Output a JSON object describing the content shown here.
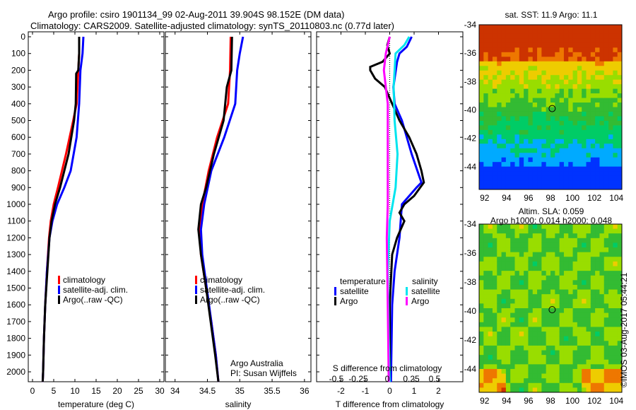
{
  "title": {
    "line1": "Argo profile: csiro 1901134_99 02-Aug-2011 39.904S 98.152E (DM data)",
    "line2": "Climatology: CARS2009. Satellite-adjusted climatology: synTS_20110803.nc (0.77d later)"
  },
  "chart_data": [
    {
      "type": "line",
      "name": "temperature",
      "xlabel": "temperature (deg C)",
      "xlim": [
        -1,
        31
      ],
      "xticks": [
        0,
        5,
        10,
        15,
        20,
        25,
        30
      ],
      "ylim": [
        0,
        2060
      ],
      "yticks": [
        0,
        100,
        200,
        300,
        400,
        500,
        600,
        700,
        800,
        900,
        1000,
        1100,
        1200,
        1300,
        1400,
        1500,
        1600,
        1700,
        1800,
        1900,
        2000
      ],
      "legend": [
        "climatology",
        "satellite-adj. clim.",
        "Argo(..raw -QC)"
      ],
      "series": [
        {
          "name": "climatology",
          "color": "#ff0000",
          "points": [
            [
              11,
              0
            ],
            [
              11,
              100
            ],
            [
              10.8,
              200
            ],
            [
              10.4,
              400
            ],
            [
              9.6,
              500
            ],
            [
              7.9,
              700
            ],
            [
              6,
              900
            ],
            [
              5,
              1000
            ],
            [
              4.3,
              1100
            ],
            [
              3.9,
              1200
            ],
            [
              3.4,
              1400
            ],
            [
              3,
              1600
            ],
            [
              2.7,
              1800
            ],
            [
              2.5,
              2000
            ],
            [
              2.4,
              2060
            ]
          ]
        },
        {
          "name": "satellite-adj. clim.",
          "color": "#0000ff",
          "points": [
            [
              12,
              0
            ],
            [
              11.8,
              100
            ],
            [
              11.3,
              200
            ],
            [
              11,
              400
            ],
            [
              10.4,
              600
            ],
            [
              9,
              800
            ],
            [
              7.5,
              900
            ],
            [
              5.8,
              1000
            ],
            [
              4.7,
              1100
            ],
            [
              4,
              1200
            ],
            [
              3.4,
              1400
            ],
            [
              3,
              1600
            ],
            [
              2.7,
              1800
            ],
            [
              2.5,
              2000
            ],
            [
              2.4,
              2060
            ]
          ]
        },
        {
          "name": "Argo(..raw -QC)",
          "color": "#000000",
          "points": [
            [
              11,
              0
            ],
            [
              11,
              100
            ],
            [
              10.8,
              200
            ],
            [
              10.3,
              220
            ],
            [
              10.2,
              400
            ],
            [
              9.8,
              500
            ],
            [
              8.5,
              700
            ],
            [
              6.5,
              900
            ],
            [
              5.3,
              1000
            ],
            [
              4.5,
              1100
            ],
            [
              4,
              1200
            ],
            [
              3.5,
              1400
            ],
            [
              3,
              1600
            ],
            [
              2.7,
              1800
            ],
            [
              2.5,
              2000
            ],
            [
              2.4,
              2060
            ]
          ]
        }
      ]
    },
    {
      "type": "line",
      "name": "salinity",
      "xlabel": "salinity",
      "xlim": [
        33.85,
        36.1
      ],
      "xticks": [
        34,
        34.5,
        35,
        35.5,
        36
      ],
      "ylim": [
        0,
        2060
      ],
      "legend": [
        "climatology",
        "satellite-adj. clim.",
        "Argo(..raw -QC)"
      ],
      "annotation": [
        "Argo Australia",
        "PI: Susan Wijffels"
      ],
      "series": [
        {
          "name": "climatology",
          "color": "#ff0000",
          "points": [
            [
              34.86,
              0
            ],
            [
              34.85,
              200
            ],
            [
              34.82,
              400
            ],
            [
              34.65,
              600
            ],
            [
              34.52,
              800
            ],
            [
              34.42,
              1000
            ],
            [
              34.38,
              1150
            ],
            [
              34.4,
              1300
            ],
            [
              34.48,
              1500
            ],
            [
              34.56,
              1700
            ],
            [
              34.63,
              1900
            ],
            [
              34.67,
              2060
            ]
          ]
        },
        {
          "name": "satellite-adj. clim.",
          "color": "#0000ff",
          "points": [
            [
              35.05,
              0
            ],
            [
              35,
              100
            ],
            [
              34.96,
              200
            ],
            [
              34.93,
              400
            ],
            [
              34.76,
              600
            ],
            [
              34.56,
              800
            ],
            [
              34.45,
              1000
            ],
            [
              34.4,
              1150
            ],
            [
              34.42,
              1300
            ],
            [
              34.49,
              1500
            ],
            [
              34.56,
              1700
            ],
            [
              34.63,
              1900
            ],
            [
              34.67,
              2060
            ]
          ]
        },
        {
          "name": "Argo(..raw -QC)",
          "color": "#000000",
          "points": [
            [
              34.88,
              0
            ],
            [
              34.87,
              200
            ],
            [
              34.8,
              300
            ],
            [
              34.75,
              500
            ],
            [
              34.6,
              700
            ],
            [
              34.48,
              900
            ],
            [
              34.4,
              1000
            ],
            [
              34.36,
              1150
            ],
            [
              34.4,
              1300
            ],
            [
              34.48,
              1500
            ],
            [
              34.55,
              1700
            ],
            [
              34.62,
              1900
            ],
            [
              34.67,
              2060
            ]
          ]
        }
      ]
    },
    {
      "type": "line",
      "name": "difference",
      "xlabel": "T difference from climatology",
      "x2label": "S difference from climatology",
      "xlim": [
        -3,
        3
      ],
      "xticks": [
        -2,
        -1,
        0,
        1,
        2
      ],
      "x2ticks": [
        "-0.5",
        "-0.25",
        "0",
        "0.25",
        "0.5"
      ],
      "ylim": [
        0,
        2060
      ],
      "legend": {
        "temperature": [
          "satellite",
          "Argo"
        ],
        "salinity": [
          "satellite",
          "Argo"
        ],
        "temperature_title": "temperature",
        "salinity_title": "salinity"
      },
      "series": [
        {
          "name": "T satellite",
          "color": "#0000ff",
          "units": "T",
          "points": [
            [
              0.9,
              0
            ],
            [
              0.7,
              60
            ],
            [
              0.4,
              100
            ],
            [
              0.3,
              150
            ],
            [
              0.15,
              300
            ],
            [
              0.2,
              400
            ],
            [
              0.5,
              500
            ],
            [
              0.9,
              700
            ],
            [
              1.3,
              870
            ],
            [
              1.1,
              900
            ],
            [
              0.5,
              1000
            ],
            [
              0.4,
              1200
            ],
            [
              0.2,
              1400
            ],
            [
              0.1,
              1600
            ],
            [
              0.05,
              2060
            ]
          ]
        },
        {
          "name": "T Argo",
          "color": "#000000",
          "units": "T",
          "points": [
            [
              0,
              0
            ],
            [
              -0.1,
              50
            ],
            [
              0,
              100
            ],
            [
              -0.3,
              150
            ],
            [
              -0.8,
              180
            ],
            [
              -0.8,
              200
            ],
            [
              -0.6,
              250
            ],
            [
              -0.2,
              300
            ],
            [
              0.1,
              400
            ],
            [
              0.4,
              500
            ],
            [
              0.8,
              600
            ],
            [
              1.1,
              700
            ],
            [
              1.3,
              800
            ],
            [
              1.4,
              870
            ],
            [
              1,
              950
            ],
            [
              0.6,
              1000
            ],
            [
              0.4,
              1050
            ],
            [
              0.6,
              1100
            ],
            [
              0.3,
              1200
            ],
            [
              0.1,
              1300
            ],
            [
              0,
              1600
            ],
            [
              0,
              2060
            ]
          ]
        },
        {
          "name": "S satellite",
          "color": "#00e5ee",
          "units": "S",
          "points": [
            [
              0.2,
              0
            ],
            [
              0.15,
              50
            ],
            [
              0.06,
              100
            ],
            [
              0.04,
              300
            ],
            [
              0.05,
              500
            ],
            [
              0.08,
              700
            ],
            [
              0.06,
              900
            ],
            [
              0,
              1100
            ],
            [
              -0.02,
              1400
            ],
            [
              -0.01,
              1800
            ],
            [
              0,
              2060
            ]
          ]
        },
        {
          "name": "S Argo",
          "color": "#ff00ff",
          "units": "S",
          "points": [
            [
              0,
              0
            ],
            [
              -0.04,
              100
            ],
            [
              -0.06,
              200
            ],
            [
              -0.02,
              400
            ],
            [
              -0.02,
              1000
            ],
            [
              -0.03,
              1200
            ],
            [
              -0.02,
              1600
            ],
            [
              -0.01,
              2060
            ]
          ]
        }
      ]
    },
    {
      "type": "heatmap",
      "name": "sst-map",
      "title": "sat. SST: 11.9 Argo: 11.1",
      "xticks": [
        92,
        94,
        96,
        98,
        100,
        102,
        104
      ],
      "yticks": [
        -34,
        -36,
        -38,
        -40,
        -42,
        -44
      ],
      "xlim": [
        91.5,
        104.5
      ],
      "ylim": [
        -45.6,
        -34
      ],
      "marker": [
        98.152,
        -39.904
      ]
    },
    {
      "type": "heatmap",
      "name": "sla-map",
      "title": [
        "Altim. SLA: 0.059",
        "Argo h1000: 0.014 h2000: 0.048"
      ],
      "xticks": [
        92,
        94,
        96,
        98,
        100,
        102,
        104
      ],
      "yticks": [
        -34,
        -36,
        -38,
        -40,
        -42,
        -44
      ],
      "xlim": [
        91.5,
        104.5
      ],
      "ylim": [
        -45.6,
        -34
      ],
      "marker": [
        98.152,
        -39.904
      ]
    }
  ],
  "credit": "©IMOS 03-Aug-2017 05:44:21"
}
